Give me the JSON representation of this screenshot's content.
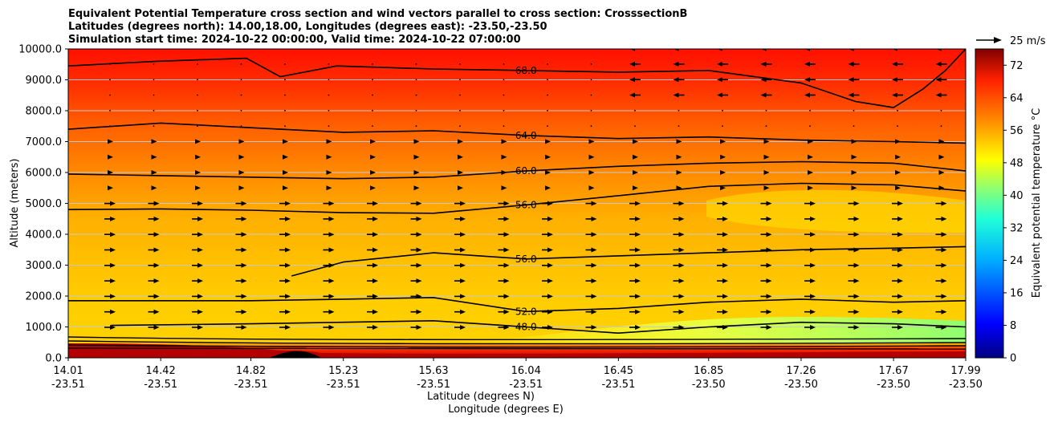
{
  "chart_data": {
    "type": "heatmap",
    "title_lines": [
      "Equivalent Potential Temperature cross section and wind vectors parallel to cross section: CrosssectionB",
      "Latitudes (degrees north): 14.00,18.00, Longitudes (degrees east): -23.50,-23.50",
      "Simulation start time: 2024-10-22 00:00:00, Valid time: 2024-10-22 07:00:00"
    ],
    "xlabel": "Latitude (degrees N)",
    "xlabel2": "Longitude (degrees E)",
    "ylabel": "Altitude (meters)",
    "colorbar_label": "Equivalent potential temperature °C",
    "quiver_key": "25 m/s",
    "ylim": [
      0,
      10000
    ],
    "yticks": [
      "0.0",
      "1000.0",
      "2000.0",
      "3000.0",
      "4000.0",
      "5000.0",
      "6000.0",
      "7000.0",
      "8000.0",
      "9000.0",
      "10000.0"
    ],
    "xticks": [
      {
        "lat": "14.01",
        "lon": "-23.51"
      },
      {
        "lat": "14.42",
        "lon": "-23.51"
      },
      {
        "lat": "14.82",
        "lon": "-23.51"
      },
      {
        "lat": "15.23",
        "lon": "-23.51"
      },
      {
        "lat": "15.63",
        "lon": "-23.51"
      },
      {
        "lat": "16.04",
        "lon": "-23.51"
      },
      {
        "lat": "16.45",
        "lon": "-23.51"
      },
      {
        "lat": "16.85",
        "lon": "-23.50"
      },
      {
        "lat": "17.26",
        "lon": "-23.50"
      },
      {
        "lat": "17.67",
        "lon": "-23.50"
      },
      {
        "lat": "17.99",
        "lon": "-23.50"
      }
    ],
    "colorbar_ticks": [
      0,
      8,
      16,
      24,
      32,
      40,
      48,
      56,
      64,
      72
    ],
    "colorbar_range": [
      0,
      76
    ],
    "contours": [
      {
        "label": "68.0",
        "level": 68,
        "points": [
          [
            14.01,
            9450
          ],
          [
            14.4,
            9600
          ],
          [
            14.8,
            9700
          ],
          [
            14.95,
            9100
          ],
          [
            15.2,
            9450
          ],
          [
            15.63,
            9350
          ],
          [
            16.04,
            9300
          ],
          [
            16.45,
            9250
          ],
          [
            16.85,
            9300
          ],
          [
            17.26,
            8900
          ],
          [
            17.5,
            8300
          ],
          [
            17.67,
            8100
          ],
          [
            17.8,
            8700
          ],
          [
            17.9,
            9300
          ],
          [
            17.99,
            10000
          ]
        ]
      },
      {
        "label": "64.0",
        "level": 64,
        "points": [
          [
            14.01,
            7400
          ],
          [
            14.42,
            7600
          ],
          [
            14.82,
            7450
          ],
          [
            15.23,
            7300
          ],
          [
            15.63,
            7350
          ],
          [
            16.04,
            7200
          ],
          [
            16.45,
            7100
          ],
          [
            16.85,
            7150
          ],
          [
            17.26,
            7050
          ],
          [
            17.67,
            7000
          ],
          [
            17.99,
            6950
          ]
        ]
      },
      {
        "label": "60.0",
        "level": 60,
        "points": [
          [
            14.01,
            5950
          ],
          [
            14.42,
            5900
          ],
          [
            14.82,
            5850
          ],
          [
            15.23,
            5800
          ],
          [
            15.63,
            5850
          ],
          [
            16.04,
            6050
          ],
          [
            16.45,
            6200
          ],
          [
            16.85,
            6300
          ],
          [
            17.26,
            6350
          ],
          [
            17.67,
            6300
          ],
          [
            17.99,
            6050
          ]
        ]
      },
      {
        "label": "56.0",
        "level": 56,
        "points": [
          [
            14.01,
            4800
          ],
          [
            14.42,
            4820
          ],
          [
            14.82,
            4780
          ],
          [
            15.23,
            4700
          ],
          [
            15.63,
            4680
          ],
          [
            16.04,
            4950
          ],
          [
            16.45,
            5250
          ],
          [
            16.85,
            5550
          ],
          [
            17.26,
            5650
          ],
          [
            17.67,
            5600
          ],
          [
            17.99,
            5400
          ]
        ]
      },
      {
        "label": "56.0",
        "level": 56,
        "points": [
          [
            15.0,
            2650
          ],
          [
            15.23,
            3100
          ],
          [
            15.63,
            3400
          ],
          [
            16.04,
            3200
          ],
          [
            16.45,
            3300
          ],
          [
            16.85,
            3400
          ],
          [
            17.26,
            3500
          ],
          [
            17.67,
            3550
          ],
          [
            17.99,
            3600
          ]
        ]
      },
      {
        "label": "52.0",
        "level": 52,
        "points": [
          [
            14.01,
            1850
          ],
          [
            14.42,
            1850
          ],
          [
            14.82,
            1850
          ],
          [
            15.23,
            1900
          ],
          [
            15.63,
            1950
          ],
          [
            16.04,
            1500
          ],
          [
            16.45,
            1600
          ],
          [
            16.85,
            1800
          ],
          [
            17.26,
            1900
          ],
          [
            17.67,
            1800
          ],
          [
            17.99,
            1850
          ]
        ]
      },
      {
        "label": "48.0",
        "level": 48,
        "points": [
          [
            14.2,
            1050
          ],
          [
            14.82,
            1100
          ],
          [
            15.23,
            1150
          ],
          [
            15.63,
            1200
          ],
          [
            16.04,
            1000
          ],
          [
            16.45,
            800
          ],
          [
            16.85,
            1000
          ],
          [
            17.26,
            1150
          ],
          [
            17.67,
            1100
          ],
          [
            17.99,
            1000
          ]
        ]
      }
    ]
  }
}
